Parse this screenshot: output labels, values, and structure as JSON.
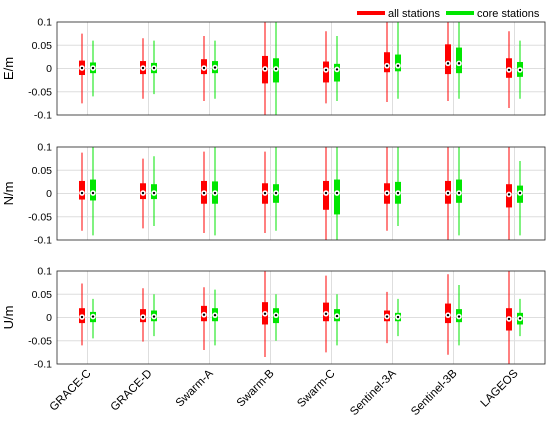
{
  "chart_data": {
    "type": "boxplot",
    "legend": {
      "placement": "top-right",
      "items": [
        {
          "name": "all stations",
          "color": "#ff0000"
        },
        {
          "name": "core stations",
          "color": "#00e600"
        }
      ]
    },
    "categories": [
      "GRACE-C",
      "GRACE-D",
      "Swarm-A",
      "Swarm-B",
      "Swarm-C",
      "Sentinel-3A",
      "Sentinel-3B",
      "LAGEOS"
    ],
    "yticks": [
      "0.1",
      "0.05",
      "0",
      "-0.05",
      "-0.1"
    ],
    "ylim": [
      -0.1,
      0.1
    ],
    "grid": true,
    "panels": [
      {
        "ylabel": "E/m",
        "series": [
          {
            "name": "all stations",
            "boxes": [
              {
                "whisker_low": -0.075,
                "q1": -0.014,
                "median": 0.001,
                "q3": 0.017,
                "whisker_high": 0.075
              },
              {
                "whisker_low": -0.065,
                "q1": -0.012,
                "median": 0.001,
                "q3": 0.016,
                "whisker_high": 0.065
              },
              {
                "whisker_low": -0.07,
                "q1": -0.012,
                "median": 0.001,
                "q3": 0.02,
                "whisker_high": 0.07
              },
              {
                "whisker_low": -0.1,
                "q1": -0.032,
                "median": -0.001,
                "q3": 0.027,
                "whisker_high": 0.1
              },
              {
                "whisker_low": -0.075,
                "q1": -0.03,
                "median": -0.003,
                "q3": 0.015,
                "whisker_high": 0.08
              },
              {
                "whisker_low": -0.072,
                "q1": -0.008,
                "median": 0.006,
                "q3": 0.035,
                "whisker_high": 0.1
              },
              {
                "whisker_low": -0.07,
                "q1": -0.012,
                "median": 0.011,
                "q3": 0.052,
                "whisker_high": 0.1
              },
              {
                "whisker_low": -0.085,
                "q1": -0.02,
                "median": -0.003,
                "q3": 0.022,
                "whisker_high": 0.08
              }
            ]
          },
          {
            "name": "core stations",
            "boxes": [
              {
                "whisker_low": -0.06,
                "q1": -0.01,
                "median": 0.001,
                "q3": 0.013,
                "whisker_high": 0.06
              },
              {
                "whisker_low": -0.055,
                "q1": -0.01,
                "median": 0.001,
                "q3": 0.012,
                "whisker_high": 0.06
              },
              {
                "whisker_low": -0.065,
                "q1": -0.01,
                "median": 0.002,
                "q3": 0.016,
                "whisker_high": 0.06
              },
              {
                "whisker_low": -0.1,
                "q1": -0.03,
                "median": -0.001,
                "q3": 0.022,
                "whisker_high": 0.1
              },
              {
                "whisker_low": -0.07,
                "q1": -0.028,
                "median": -0.002,
                "q3": 0.01,
                "whisker_high": 0.07
              },
              {
                "whisker_low": -0.065,
                "q1": -0.006,
                "median": 0.006,
                "q3": 0.03,
                "whisker_high": 0.1
              },
              {
                "whisker_low": -0.065,
                "q1": -0.01,
                "median": 0.011,
                "q3": 0.045,
                "whisker_high": 0.1
              },
              {
                "whisker_low": -0.065,
                "q1": -0.018,
                "median": -0.003,
                "q3": 0.014,
                "whisker_high": 0.06
              }
            ]
          }
        ]
      },
      {
        "ylabel": "N/m",
        "series": [
          {
            "name": "all stations",
            "boxes": [
              {
                "whisker_low": -0.08,
                "q1": -0.013,
                "median": 0.001,
                "q3": 0.027,
                "whisker_high": 0.088
              },
              {
                "whisker_low": -0.075,
                "q1": -0.012,
                "median": 0.001,
                "q3": 0.022,
                "whisker_high": 0.075
              },
              {
                "whisker_low": -0.085,
                "q1": -0.022,
                "median": 0.001,
                "q3": 0.027,
                "whisker_high": 0.09
              },
              {
                "whisker_low": -0.085,
                "q1": -0.022,
                "median": 0.001,
                "q3": 0.022,
                "whisker_high": 0.09
              },
              {
                "whisker_low": -0.1,
                "q1": -0.035,
                "median": 0.001,
                "q3": 0.027,
                "whisker_high": 0.1
              },
              {
                "whisker_low": -0.08,
                "q1": -0.022,
                "median": 0.001,
                "q3": 0.022,
                "whisker_high": 0.1
              },
              {
                "whisker_low": -0.1,
                "q1": -0.022,
                "median": 0.001,
                "q3": 0.027,
                "whisker_high": 0.1
              },
              {
                "whisker_low": -0.1,
                "q1": -0.03,
                "median": -0.002,
                "q3": 0.02,
                "whisker_high": 0.1
              }
            ]
          },
          {
            "name": "core stations",
            "boxes": [
              {
                "whisker_low": -0.09,
                "q1": -0.015,
                "median": 0.001,
                "q3": 0.03,
                "whisker_high": 0.1
              },
              {
                "whisker_low": -0.07,
                "q1": -0.012,
                "median": 0.001,
                "q3": 0.02,
                "whisker_high": 0.08
              },
              {
                "whisker_low": -0.09,
                "q1": -0.022,
                "median": 0.001,
                "q3": 0.026,
                "whisker_high": 0.1
              },
              {
                "whisker_low": -0.08,
                "q1": -0.02,
                "median": 0.001,
                "q3": 0.02,
                "whisker_high": 0.1
              },
              {
                "whisker_low": -0.1,
                "q1": -0.045,
                "median": 0.001,
                "q3": 0.03,
                "whisker_high": 0.1
              },
              {
                "whisker_low": -0.07,
                "q1": -0.022,
                "median": 0.001,
                "q3": 0.025,
                "whisker_high": 0.1
              },
              {
                "whisker_low": -0.09,
                "q1": -0.02,
                "median": 0.001,
                "q3": 0.03,
                "whisker_high": 0.1
              },
              {
                "whisker_low": -0.09,
                "q1": -0.02,
                "median": 0.001,
                "q3": 0.017,
                "whisker_high": 0.07
              }
            ]
          }
        ]
      },
      {
        "ylabel": "U/m",
        "series": [
          {
            "name": "all stations",
            "boxes": [
              {
                "whisker_low": -0.06,
                "q1": -0.012,
                "median": 0.001,
                "q3": 0.02,
                "whisker_high": 0.073
              },
              {
                "whisker_low": -0.052,
                "q1": -0.01,
                "median": 0.001,
                "q3": 0.018,
                "whisker_high": 0.063
              },
              {
                "whisker_low": -0.07,
                "q1": -0.008,
                "median": 0.006,
                "q3": 0.025,
                "whisker_high": 0.065
              },
              {
                "whisker_low": -0.085,
                "q1": -0.015,
                "median": 0.008,
                "q3": 0.033,
                "whisker_high": 0.1
              },
              {
                "whisker_low": -0.075,
                "q1": -0.008,
                "median": 0.008,
                "q3": 0.032,
                "whisker_high": 0.09
              },
              {
                "whisker_low": -0.055,
                "q1": -0.008,
                "median": 0.002,
                "q3": 0.015,
                "whisker_high": 0.055
              },
              {
                "whisker_low": -0.08,
                "q1": -0.012,
                "median": 0.005,
                "q3": 0.03,
                "whisker_high": 0.093
              },
              {
                "whisker_low": -0.1,
                "q1": -0.028,
                "median": -0.003,
                "q3": 0.02,
                "whisker_high": 0.1
              }
            ]
          },
          {
            "name": "core stations",
            "boxes": [
              {
                "whisker_low": -0.045,
                "q1": -0.01,
                "median": 0.002,
                "q3": 0.012,
                "whisker_high": 0.04
              },
              {
                "whisker_low": -0.04,
                "q1": -0.008,
                "median": 0.002,
                "q3": 0.015,
                "whisker_high": 0.05
              },
              {
                "whisker_low": -0.06,
                "q1": -0.008,
                "median": 0.005,
                "q3": 0.02,
                "whisker_high": 0.06
              },
              {
                "whisker_low": -0.05,
                "q1": -0.012,
                "median": 0.005,
                "q3": 0.02,
                "whisker_high": 0.05
              },
              {
                "whisker_low": -0.06,
                "q1": -0.008,
                "median": 0.003,
                "q3": 0.018,
                "whisker_high": 0.05
              },
              {
                "whisker_low": -0.04,
                "q1": -0.008,
                "median": 0.001,
                "q3": 0.01,
                "whisker_high": 0.04
              },
              {
                "whisker_low": -0.06,
                "q1": -0.01,
                "median": 0.002,
                "q3": 0.018,
                "whisker_high": 0.07
              },
              {
                "whisker_low": -0.04,
                "q1": -0.015,
                "median": -0.002,
                "q3": 0.01,
                "whisker_high": 0.04
              }
            ]
          }
        ]
      }
    ]
  }
}
